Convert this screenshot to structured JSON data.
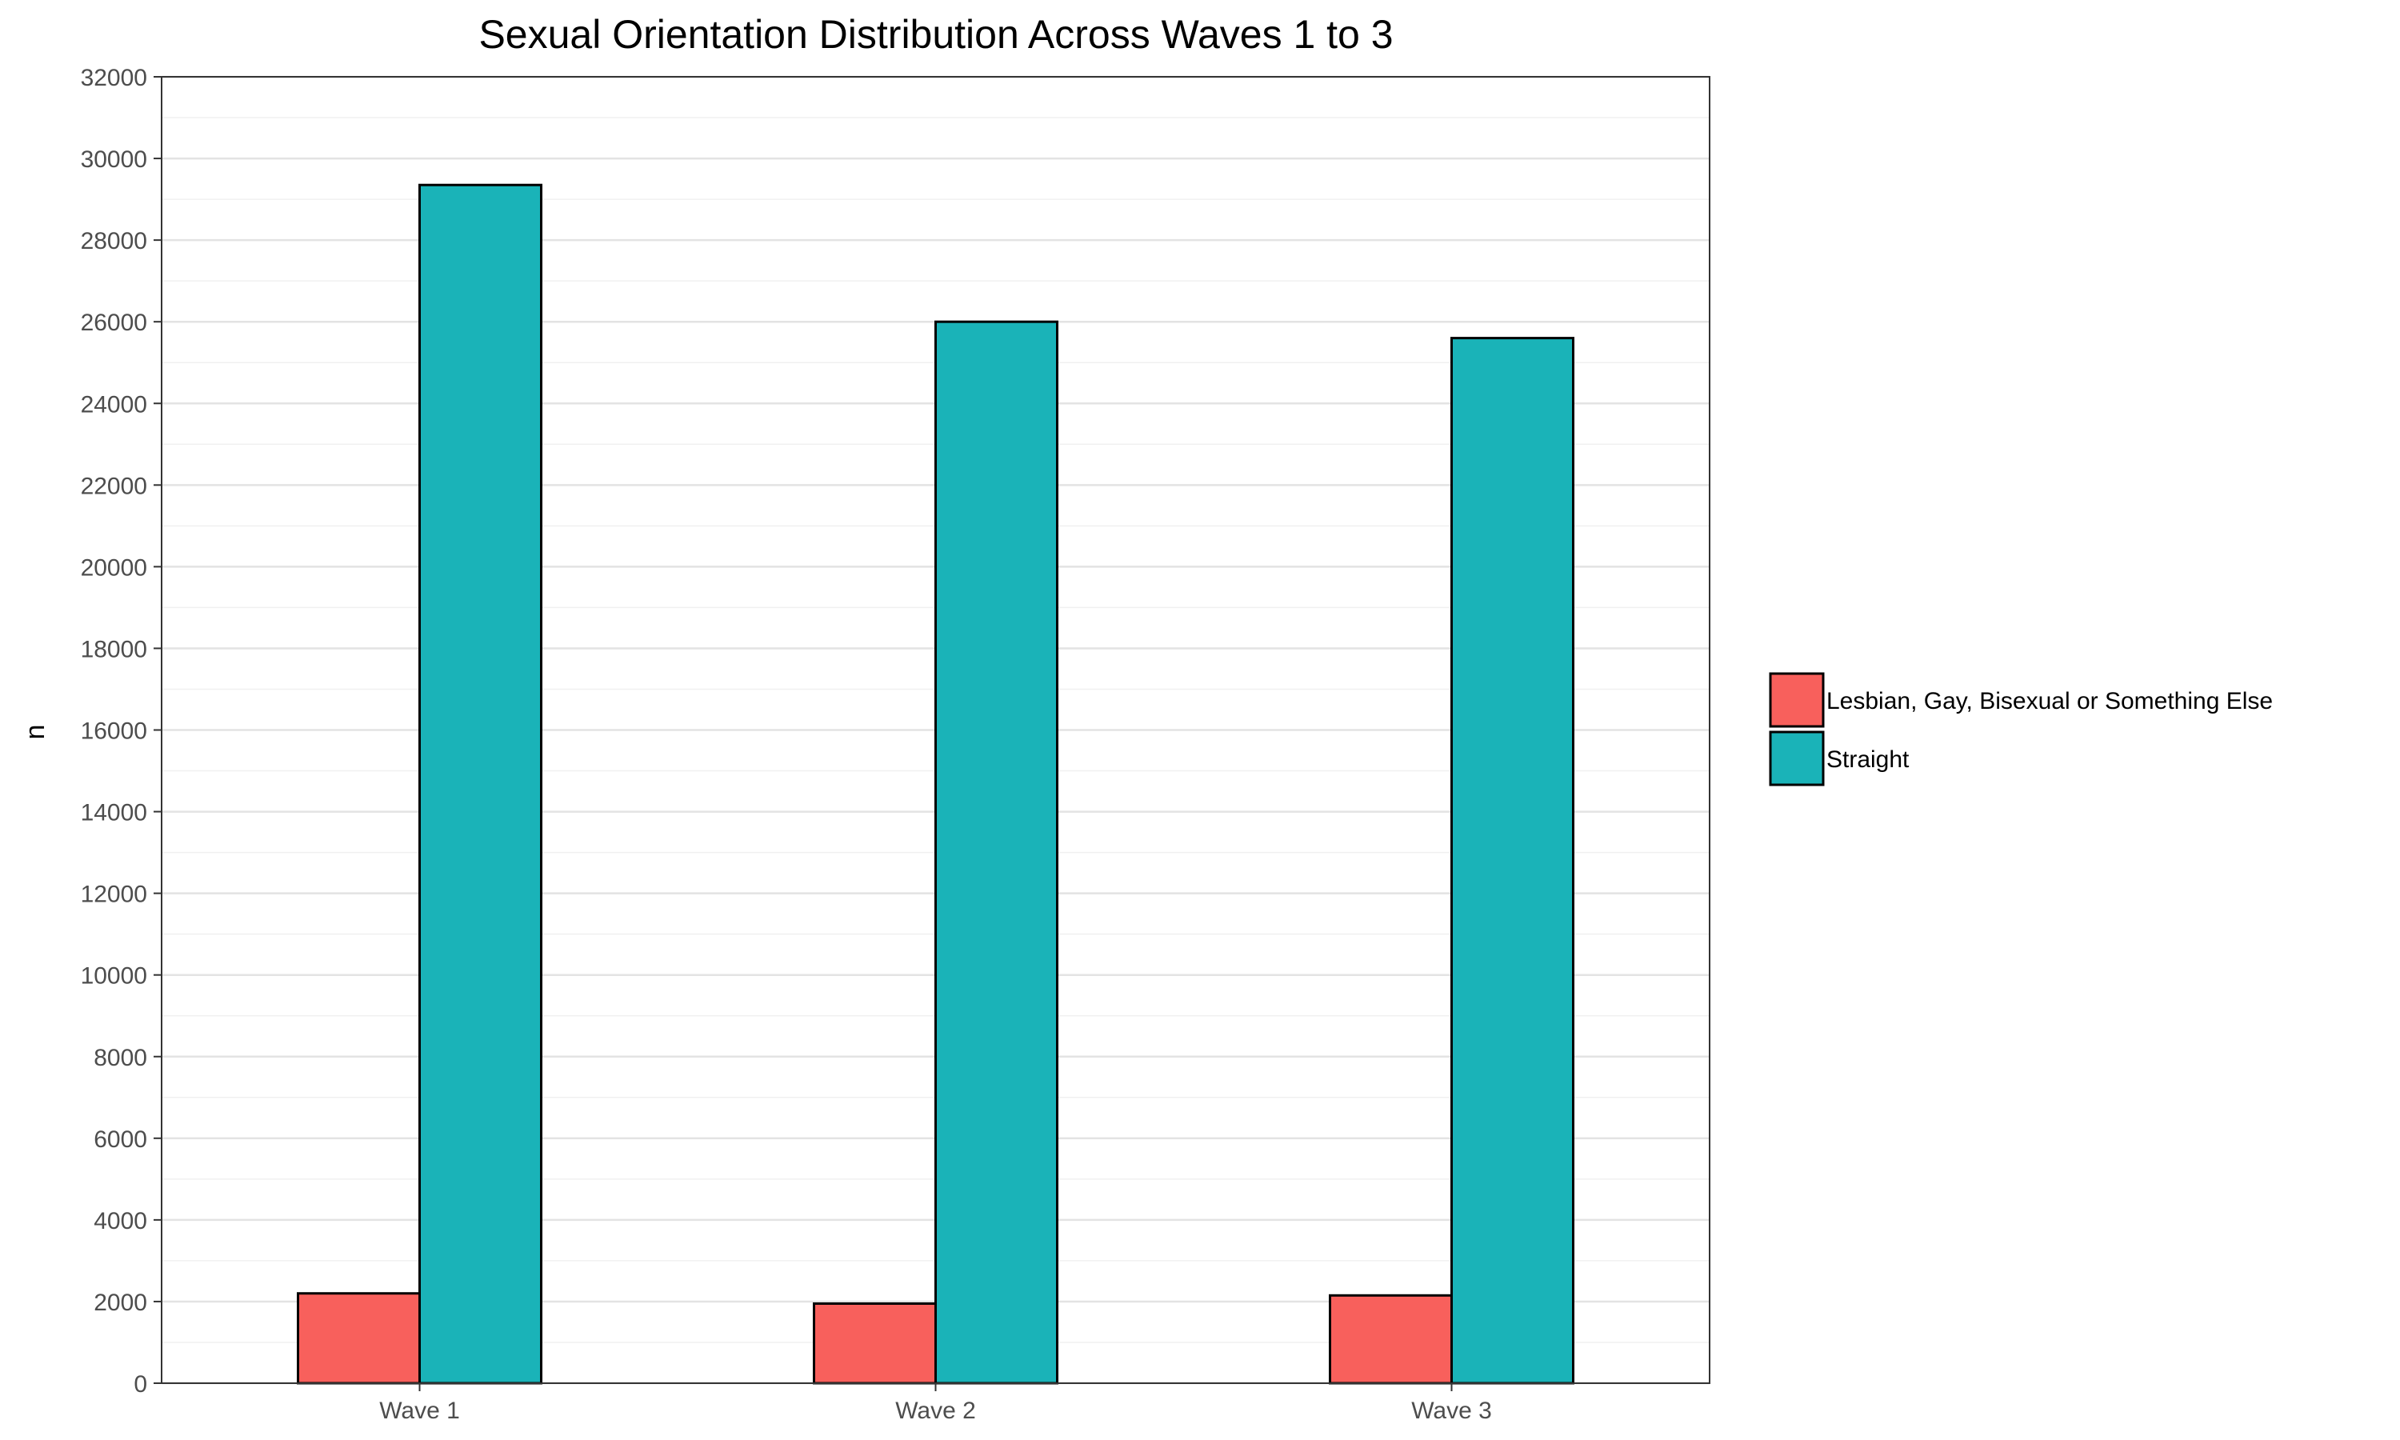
{
  "chart_data": {
    "type": "bar",
    "title": "Sexual Orientation Distribution Across Waves 1 to 3",
    "xlabel": "",
    "ylabel": "n",
    "categories": [
      "Wave 1",
      "Wave 2",
      "Wave 3"
    ],
    "series": [
      {
        "name": "Lesbian, Gay, Bisexual or Something Else",
        "color": "#f8605c",
        "values": [
          2200,
          1950,
          2150
        ]
      },
      {
        "name": "Straight",
        "color": "#1ab3b8",
        "values": [
          29350,
          26000,
          25600
        ]
      }
    ],
    "ylim": [
      0,
      32000
    ],
    "yticks": [
      0,
      2000,
      4000,
      6000,
      8000,
      10000,
      12000,
      14000,
      16000,
      18000,
      20000,
      22000,
      24000,
      26000,
      28000,
      30000,
      32000
    ],
    "grid": true,
    "legend_position": "right"
  }
}
